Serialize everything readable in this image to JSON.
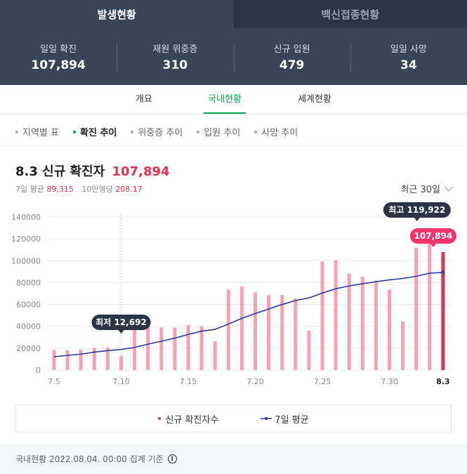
{
  "top_tabs": [
    {
      "label": "발생현황",
      "active": true
    },
    {
      "label": "백신접종현황",
      "active": false
    }
  ],
  "stats": [
    {
      "label": "일일 확진",
      "value": "107,894"
    },
    {
      "label": "재원 위중증",
      "value": "310"
    },
    {
      "label": "신규 입원",
      "value": "479"
    },
    {
      "label": "일일 사망",
      "value": "34"
    }
  ],
  "sub_tabs": [
    {
      "label": "개요",
      "active": false
    },
    {
      "label": "국내현황",
      "active": true
    },
    {
      "label": "세계현황",
      "active": false
    }
  ],
  "filters": [
    {
      "label": "지역별 표",
      "active": false
    },
    {
      "label": "확진 추이",
      "active": true
    },
    {
      "label": "위중증 추이",
      "active": false
    },
    {
      "label": "입원 추이",
      "active": false
    },
    {
      "label": "사망 추이",
      "active": false
    }
  ],
  "headline": {
    "date": "8.3",
    "title": "신규 확진자",
    "value": "107,894"
  },
  "subline": {
    "avg_label": "7일 평균",
    "avg_value": "89,315",
    "per_label": "10만명당",
    "per_value": "208.17"
  },
  "period": {
    "label": "최근 30일",
    "icon": "chevron-down-icon"
  },
  "colors": {
    "bar": "#f4a3b2",
    "bar_highlight": "#e0334f",
    "line": "#2b3a9b",
    "accent": "#03a94d"
  },
  "chart_data": {
    "type": "bar",
    "categories": [
      "7.5",
      "7.6",
      "7.7",
      "7.8",
      "7.9",
      "7.10",
      "7.11",
      "7.12",
      "7.13",
      "7.14",
      "7.15",
      "7.16",
      "7.17",
      "7.18",
      "7.19",
      "7.20",
      "7.21",
      "7.22",
      "7.23",
      "7.24",
      "7.25",
      "7.26",
      "7.27",
      "7.28",
      "7.29",
      "7.30",
      "7.31",
      "8.1",
      "8.2",
      "8.3"
    ],
    "x_tick_labels": [
      "7.5",
      "7.10",
      "7.15",
      "7.20",
      "7.25",
      "7.30",
      "8.3"
    ],
    "y_ticks": [
      "0",
      "20000",
      "40000",
      "60000",
      "80000",
      "100000",
      "120000",
      "140000"
    ],
    "ylim": [
      0,
      140000
    ],
    "series": [
      {
        "name": "신규 확진자수",
        "type": "bar",
        "values": [
          18500,
          18100,
          18500,
          20300,
          20400,
          12692,
          37300,
          40200,
          39000,
          38900,
          41300,
          40300,
          26300,
          73600,
          76400,
          71100,
          68600,
          68600,
          65400,
          35900,
          99300,
          100300,
          88400,
          85300,
          81900,
          73600,
          44700,
          111800,
          119922,
          107894
        ]
      },
      {
        "name": "7일 평균",
        "type": "line",
        "values": [
          12200,
          13400,
          14600,
          16400,
          17800,
          18800,
          20700,
          23700,
          26400,
          29200,
          32600,
          35600,
          37200,
          42100,
          47300,
          51700,
          55900,
          60000,
          63600,
          66000,
          70400,
          74400,
          76900,
          79000,
          80800,
          82500,
          83800,
          85800,
          88600,
          89315
        ]
      }
    ],
    "annotations": {
      "min": {
        "label": "최저",
        "value_text": "12,692",
        "index": 5
      },
      "max": {
        "label": "최고",
        "value_text": "119,922",
        "index": 28
      },
      "current": {
        "value_text": "107,894",
        "index": 29
      }
    }
  },
  "legend": [
    {
      "label": "신규 확진자수",
      "icon": "dot"
    },
    {
      "label": "7일 평균",
      "icon": "line-dot"
    }
  ],
  "footer": {
    "text": "국내현황 2022.08.04. 00:00 집계 기준",
    "icon": "info-icon",
    "icon_glyph": "i"
  }
}
